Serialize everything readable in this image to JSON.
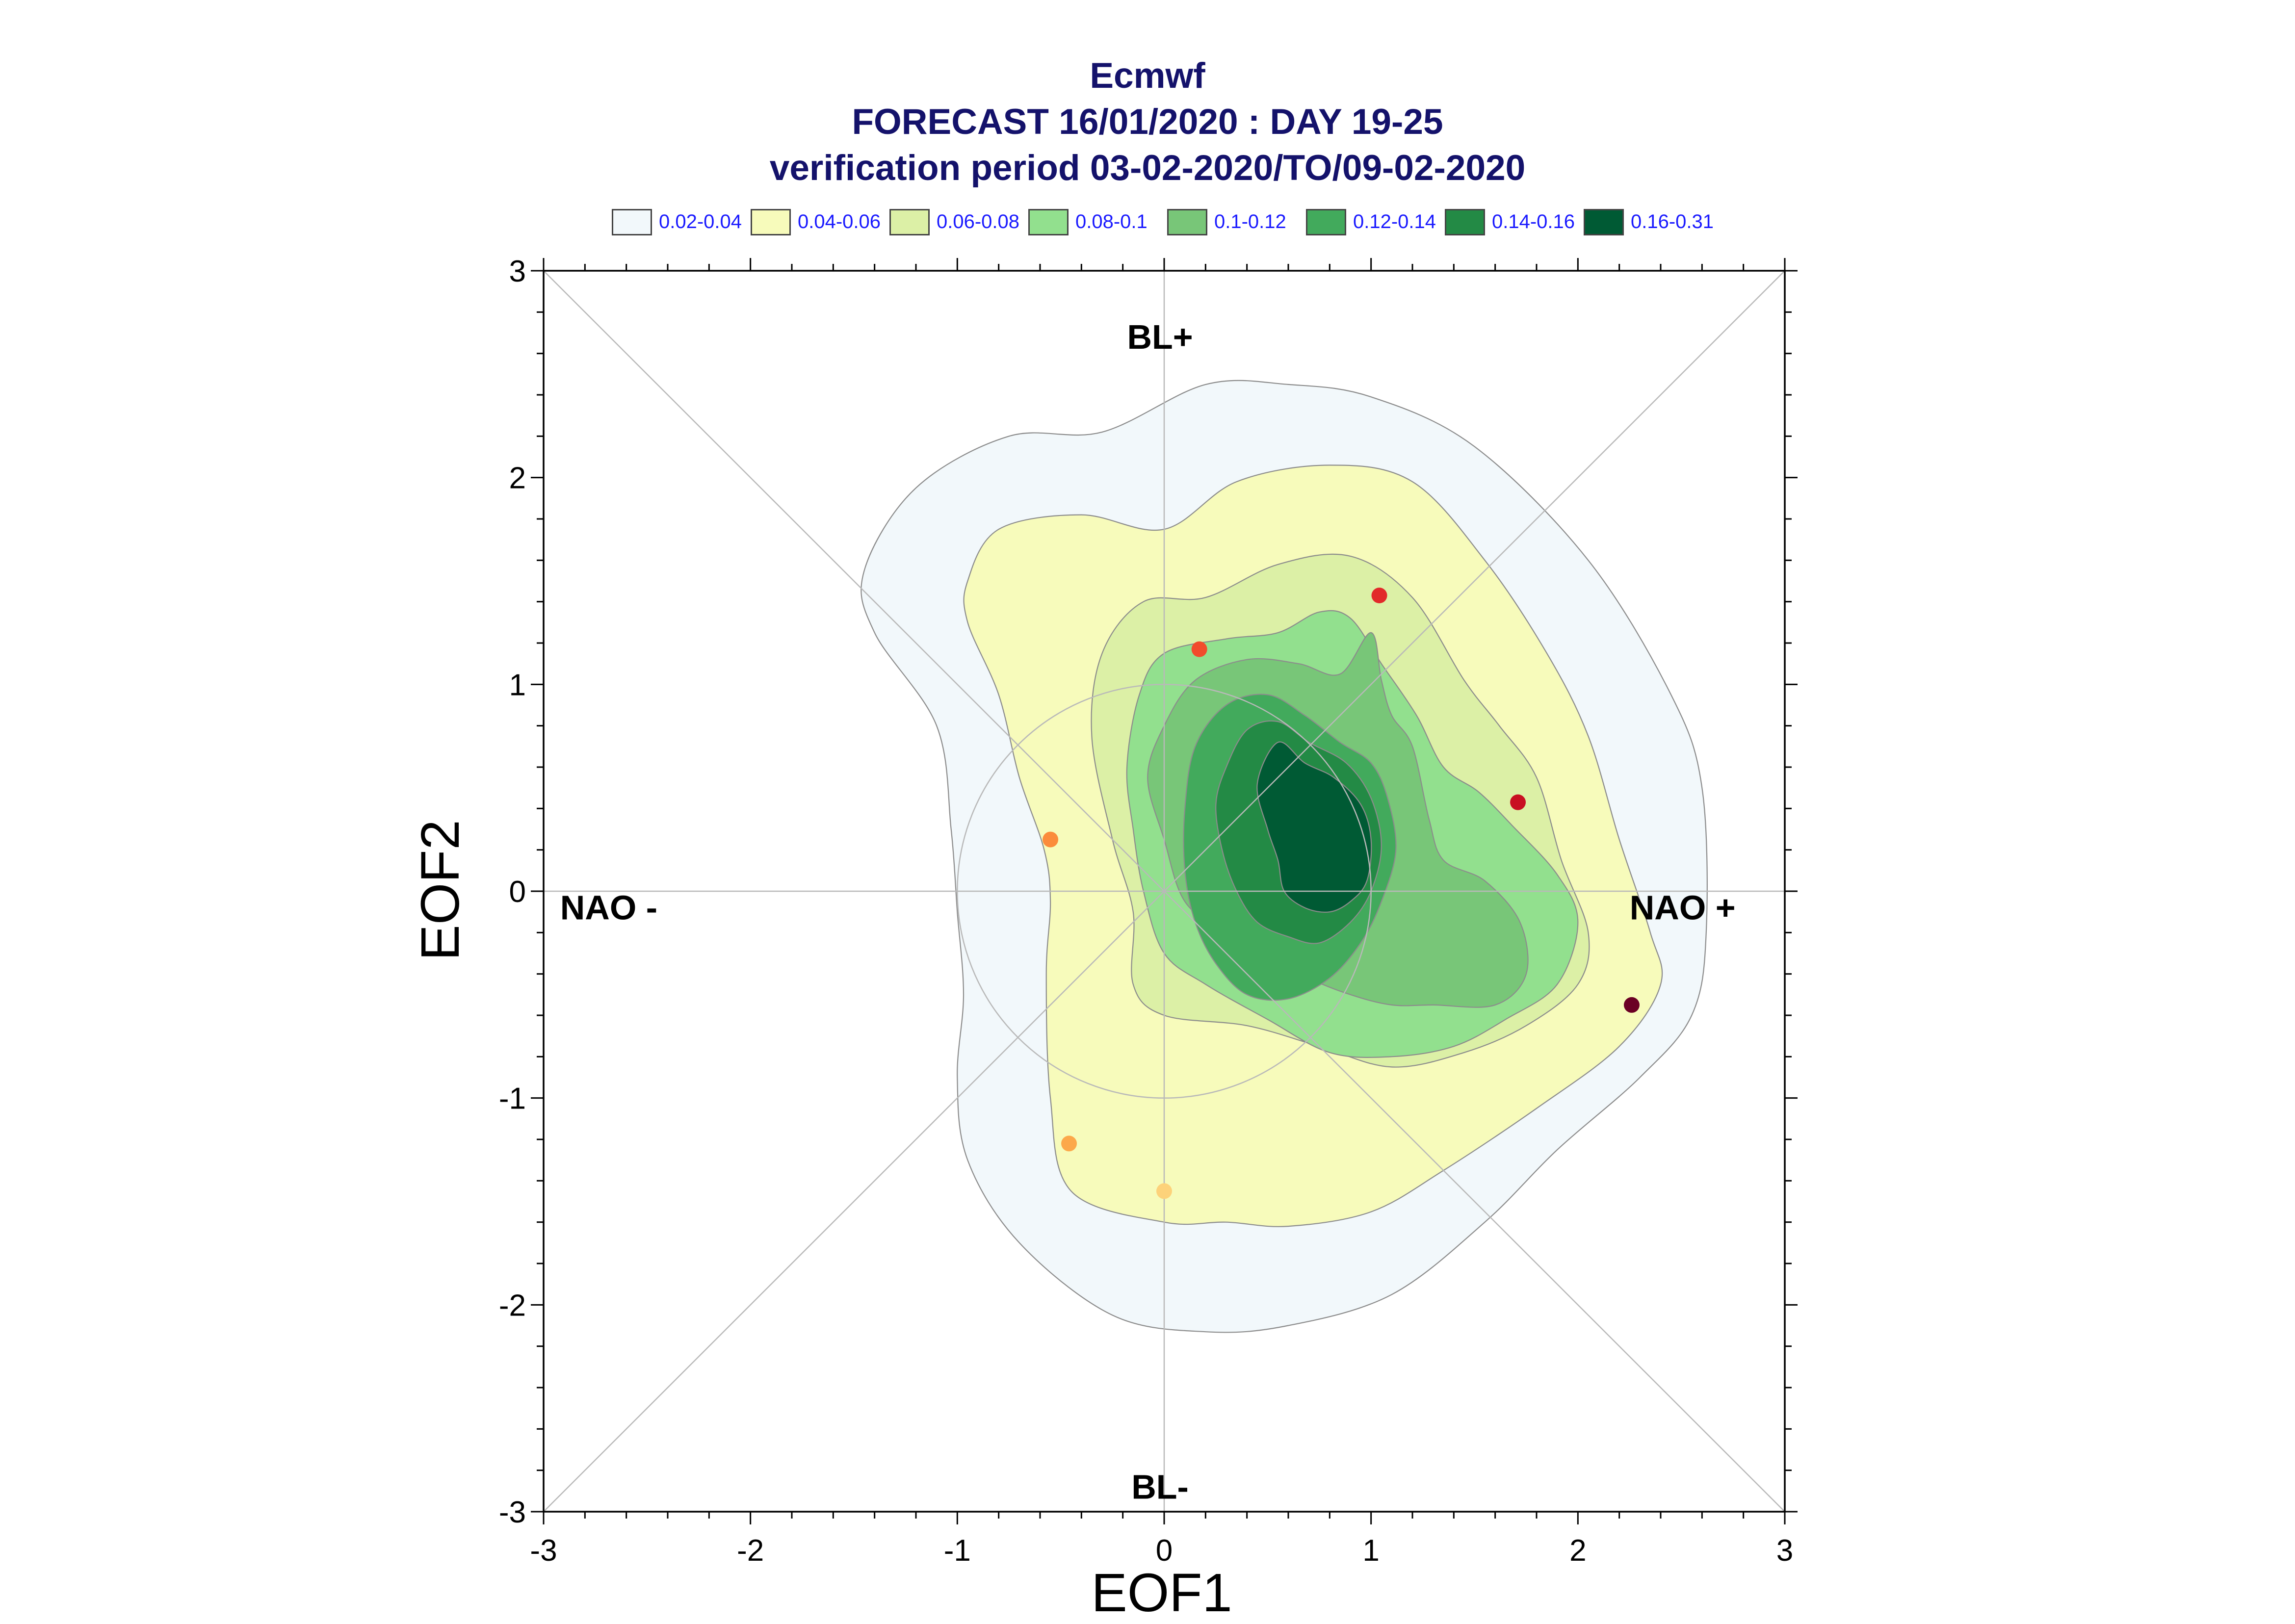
{
  "titles": {
    "line1": "Ecmwf",
    "line2": "FORECAST 16/01/2020 : DAY 19-25",
    "line3": "verification period 03-02-2020/TO/09-02-2020"
  },
  "legend": [
    {
      "label": "0.02-0.04",
      "color": "#f2f8fb"
    },
    {
      "label": "0.04-0.06",
      "color": "#f7fbbb"
    },
    {
      "label": "0.06-0.08",
      "color": "#dcf0a6"
    },
    {
      "label": "0.08-0.1",
      "color": "#92e08e"
    },
    {
      "label": "0.1-0.12",
      "color": "#78c678"
    },
    {
      "label": "0.12-0.14",
      "color": "#42aa5c"
    },
    {
      "label": "0.14-0.16",
      "color": "#238a45"
    },
    {
      "label": "0.16-0.31",
      "color": "#005a34"
    }
  ],
  "chart_data": {
    "type": "contour",
    "xlabel": "EOF1",
    "ylabel": "EOF2",
    "xlim": [
      -3,
      3
    ],
    "ylim": [
      -3,
      3
    ],
    "x_ticks": [
      "-3",
      "-2",
      "-1",
      "0",
      "1",
      "2",
      "3"
    ],
    "y_ticks": [
      "-3",
      "-2",
      "-1",
      "0",
      "1",
      "2",
      "3"
    ],
    "regime_labels": {
      "top": "BL+",
      "bottom": "BL-",
      "left": "NAO -",
      "right": "NAO +"
    },
    "contour_levels": [
      0.02,
      0.04,
      0.06,
      0.08,
      0.1,
      0.12,
      0.14,
      0.16,
      0.31
    ],
    "contours": [
      {
        "level": "0.02-0.04",
        "points": [
          [
            -1.45,
            1.55
          ],
          [
            -1.2,
            1.95
          ],
          [
            -0.75,
            2.2
          ],
          [
            -0.3,
            2.22
          ],
          [
            0.2,
            2.45
          ],
          [
            0.6,
            2.45
          ],
          [
            1.0,
            2.39
          ],
          [
            1.5,
            2.15
          ],
          [
            2.05,
            1.6
          ],
          [
            2.45,
            0.95
          ],
          [
            2.6,
            0.5
          ],
          [
            2.62,
            -0.2
          ],
          [
            2.55,
            -0.6
          ],
          [
            2.3,
            -0.9
          ],
          [
            1.9,
            -1.25
          ],
          [
            1.55,
            -1.6
          ],
          [
            1.1,
            -1.95
          ],
          [
            0.6,
            -2.1
          ],
          [
            0.2,
            -2.13
          ],
          [
            -0.25,
            -2.05
          ],
          [
            -0.7,
            -1.7
          ],
          [
            -0.95,
            -1.3
          ],
          [
            -1.0,
            -0.9
          ],
          [
            -0.97,
            -0.5
          ],
          [
            -1.0,
            -0.1
          ],
          [
            -1.03,
            0.3
          ],
          [
            -1.1,
            0.8
          ],
          [
            -1.4,
            1.25
          ],
          [
            -1.45,
            1.55
          ]
        ]
      },
      {
        "level": "0.04-0.06",
        "points": [
          [
            -0.95,
            1.5
          ],
          [
            -0.8,
            1.75
          ],
          [
            -0.4,
            1.82
          ],
          [
            0.0,
            1.75
          ],
          [
            0.35,
            1.98
          ],
          [
            0.8,
            2.06
          ],
          [
            1.2,
            1.98
          ],
          [
            1.55,
            1.6
          ],
          [
            1.85,
            1.15
          ],
          [
            2.05,
            0.75
          ],
          [
            2.2,
            0.25
          ],
          [
            2.35,
            -0.2
          ],
          [
            2.4,
            -0.45
          ],
          [
            2.2,
            -0.75
          ],
          [
            1.8,
            -1.05
          ],
          [
            1.35,
            -1.35
          ],
          [
            1.0,
            -1.55
          ],
          [
            0.6,
            -1.62
          ],
          [
            0.3,
            -1.6
          ],
          [
            0.0,
            -1.6
          ],
          [
            -0.45,
            -1.45
          ],
          [
            -0.55,
            -1.0
          ],
          [
            -0.57,
            -0.4
          ],
          [
            -0.55,
            -0.05
          ],
          [
            -0.58,
            0.2
          ],
          [
            -0.7,
            0.55
          ],
          [
            -0.8,
            0.95
          ],
          [
            -0.95,
            1.3
          ],
          [
            -0.95,
            1.5
          ]
        ]
      },
      {
        "level": "0.06-0.08",
        "points": [
          [
            -0.3,
            1.15
          ],
          [
            -0.1,
            1.4
          ],
          [
            0.2,
            1.42
          ],
          [
            0.55,
            1.58
          ],
          [
            0.9,
            1.62
          ],
          [
            1.2,
            1.42
          ],
          [
            1.45,
            1.02
          ],
          [
            1.62,
            0.8
          ],
          [
            1.8,
            0.55
          ],
          [
            1.92,
            0.15
          ],
          [
            2.05,
            -0.2
          ],
          [
            2.0,
            -0.45
          ],
          [
            1.75,
            -0.65
          ],
          [
            1.45,
            -0.78
          ],
          [
            1.1,
            -0.85
          ],
          [
            0.75,
            -0.75
          ],
          [
            0.4,
            -0.65
          ],
          [
            0.0,
            -0.6
          ],
          [
            -0.15,
            -0.45
          ],
          [
            -0.15,
            -0.1
          ],
          [
            -0.25,
            0.25
          ],
          [
            -0.35,
            0.75
          ],
          [
            -0.3,
            1.15
          ]
        ]
      },
      {
        "level": "0.08-0.1",
        "points": [
          [
            -0.12,
            0.95
          ],
          [
            0.0,
            1.15
          ],
          [
            0.3,
            1.22
          ],
          [
            0.55,
            1.25
          ],
          [
            0.75,
            1.35
          ],
          [
            0.9,
            1.32
          ],
          [
            1.05,
            1.1
          ],
          [
            1.22,
            0.85
          ],
          [
            1.35,
            0.6
          ],
          [
            1.52,
            0.48
          ],
          [
            1.68,
            0.32
          ],
          [
            1.9,
            0.08
          ],
          [
            2.0,
            -0.15
          ],
          [
            1.9,
            -0.45
          ],
          [
            1.65,
            -0.62
          ],
          [
            1.4,
            -0.75
          ],
          [
            1.1,
            -0.8
          ],
          [
            0.8,
            -0.78
          ],
          [
            0.5,
            -0.62
          ],
          [
            0.2,
            -0.45
          ],
          [
            0.0,
            -0.3
          ],
          [
            -0.1,
            0.0
          ],
          [
            -0.15,
            0.3
          ],
          [
            -0.18,
            0.6
          ],
          [
            -0.12,
            0.95
          ]
        ]
      },
      {
        "level": "0.1-0.12",
        "points": [
          [
            0.0,
            0.8
          ],
          [
            0.15,
            1.02
          ],
          [
            0.4,
            1.12
          ],
          [
            0.65,
            1.1
          ],
          [
            0.85,
            1.05
          ],
          [
            1.0,
            1.25
          ],
          [
            1.05,
            1.02
          ],
          [
            1.1,
            0.85
          ],
          [
            1.2,
            0.7
          ],
          [
            1.28,
            0.35
          ],
          [
            1.35,
            0.15
          ],
          [
            1.55,
            0.05
          ],
          [
            1.72,
            -0.15
          ],
          [
            1.75,
            -0.4
          ],
          [
            1.6,
            -0.55
          ],
          [
            1.3,
            -0.55
          ],
          [
            1.1,
            -0.55
          ],
          [
            0.9,
            -0.5
          ],
          [
            0.7,
            -0.42
          ],
          [
            0.5,
            -0.3
          ],
          [
            0.3,
            -0.2
          ],
          [
            0.1,
            -0.05
          ],
          [
            0.0,
            0.25
          ],
          [
            -0.08,
            0.55
          ],
          [
            0.0,
            0.8
          ]
        ]
      },
      {
        "level": "0.12-0.14",
        "points": [
          [
            0.15,
            0.7
          ],
          [
            0.3,
            0.9
          ],
          [
            0.5,
            0.95
          ],
          [
            0.68,
            0.85
          ],
          [
            0.85,
            0.72
          ],
          [
            1.0,
            0.62
          ],
          [
            1.08,
            0.45
          ],
          [
            1.12,
            0.2
          ],
          [
            1.05,
            -0.05
          ],
          [
            0.95,
            -0.25
          ],
          [
            0.8,
            -0.42
          ],
          [
            0.6,
            -0.52
          ],
          [
            0.4,
            -0.5
          ],
          [
            0.25,
            -0.35
          ],
          [
            0.15,
            -0.15
          ],
          [
            0.1,
            0.1
          ],
          [
            0.1,
            0.4
          ],
          [
            0.15,
            0.7
          ]
        ]
      },
      {
        "level": "0.14-0.16",
        "points": [
          [
            0.3,
            0.6
          ],
          [
            0.4,
            0.78
          ],
          [
            0.55,
            0.82
          ],
          [
            0.7,
            0.72
          ],
          [
            0.88,
            0.62
          ],
          [
            1.0,
            0.45
          ],
          [
            1.05,
            0.22
          ],
          [
            1.0,
            0.0
          ],
          [
            0.9,
            -0.15
          ],
          [
            0.75,
            -0.25
          ],
          [
            0.6,
            -0.22
          ],
          [
            0.45,
            -0.15
          ],
          [
            0.35,
            0.0
          ],
          [
            0.28,
            0.2
          ],
          [
            0.25,
            0.42
          ],
          [
            0.3,
            0.6
          ]
        ]
      },
      {
        "level": "0.16-0.31",
        "points": [
          [
            0.45,
            0.52
          ],
          [
            0.55,
            0.72
          ],
          [
            0.68,
            0.62
          ],
          [
            0.82,
            0.55
          ],
          [
            0.95,
            0.42
          ],
          [
            1.0,
            0.25
          ],
          [
            0.98,
            0.05
          ],
          [
            0.9,
            -0.05
          ],
          [
            0.8,
            -0.1
          ],
          [
            0.68,
            -0.08
          ],
          [
            0.58,
            0.0
          ],
          [
            0.55,
            0.15
          ],
          [
            0.5,
            0.3
          ],
          [
            0.45,
            0.52
          ]
        ]
      }
    ],
    "points": [
      {
        "x": 1.04,
        "y": 1.43,
        "color": "#e22a2a"
      },
      {
        "x": 0.17,
        "y": 1.17,
        "color": "#f24c2c"
      },
      {
        "x": 1.71,
        "y": 0.43,
        "color": "#c81022"
      },
      {
        "x": -0.55,
        "y": 0.25,
        "color": "#fb8c3c"
      },
      {
        "x": 2.26,
        "y": -0.55,
        "color": "#6b0024"
      },
      {
        "x": -0.46,
        "y": -1.22,
        "color": "#fca84a"
      },
      {
        "x": 0.0,
        "y": -1.45,
        "color": "#fdd27a"
      }
    ],
    "reference_circle": {
      "cx": 0,
      "cy": 0,
      "r": 1
    }
  }
}
